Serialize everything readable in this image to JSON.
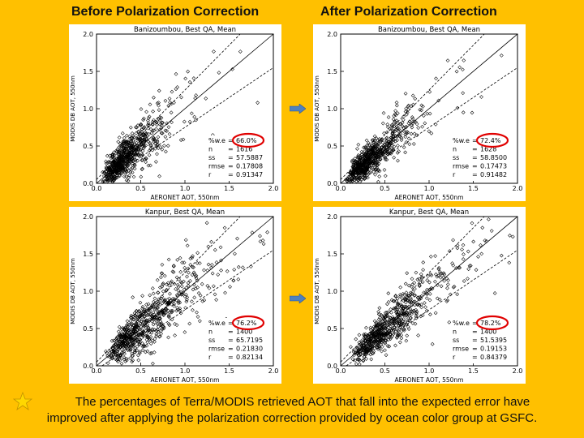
{
  "headers": {
    "before": "Before Polarization Correction",
    "after": "After Polarization Correction"
  },
  "caption": {
    "line1": "The percentages of Terra/MODIS retrieved AOT that fall into the expected error have",
    "line2": "improved after applying the polarization correction provided by ocean color group at GSFC."
  },
  "colors": {
    "background": "#FFC000",
    "arrow": "#4F81BD",
    "star": "#FFD700",
    "highlight": "#E00000"
  },
  "icons": {
    "arrow": "right-arrow-icon",
    "star": "star-icon"
  },
  "chart_data": [
    {
      "type": "scatter",
      "title": "Banizoumbou, Best QA, Mean",
      "xlabel": "AERONET AOT, 550nm",
      "ylabel": "MODIS DB AOT, 550nm",
      "xlim": [
        0,
        2
      ],
      "ylim": [
        0,
        2
      ],
      "xticks": [
        "0.0",
        "0.5",
        "1.0",
        "1.5",
        "2.0"
      ],
      "yticks": [
        "0.0",
        "0.5",
        "1.0",
        "1.5",
        "2.0"
      ],
      "stats": {
        "pct_we": "66.0%",
        "n": "1616",
        "ss": "57.5887",
        "rmse": "0.17808",
        "r": "0.91347"
      },
      "cluster": {
        "x_center": 0.35,
        "y_center": 0.4,
        "spread": 0.35
      }
    },
    {
      "type": "scatter",
      "title": "Banizoumbou, Best QA, Mean",
      "xlabel": "AERONET AOT, 550nm",
      "ylabel": "MODIS DB AOT, 550nm",
      "xlim": [
        0,
        2
      ],
      "ylim": [
        0,
        2
      ],
      "xticks": [
        "0.0",
        "0.5",
        "1.0",
        "1.5",
        "2.0"
      ],
      "yticks": [
        "0.0",
        "0.5",
        "1.0",
        "1.5",
        "2.0"
      ],
      "stats": {
        "pct_we": "72.4%",
        "n": "1628",
        "ss": "58.8500",
        "rmse": "0.17473",
        "r": "0.91482"
      },
      "cluster": {
        "x_center": 0.35,
        "y_center": 0.33,
        "spread": 0.3
      }
    },
    {
      "type": "scatter",
      "title": "Kanpur, Best QA, Mean",
      "xlabel": "AERONET AOT, 550nm",
      "ylabel": "MODIS DB AOT, 550nm",
      "xlim": [
        0,
        2
      ],
      "ylim": [
        0,
        2
      ],
      "xticks": [
        "0.0",
        "0.5",
        "1.0",
        "1.5",
        "2.0"
      ],
      "yticks": [
        "0.0",
        "0.5",
        "1.0",
        "1.5",
        "2.0"
      ],
      "stats": {
        "pct_we": "76.2%",
        "n": "1400",
        "ss": "65.7195",
        "rmse": "0.21830",
        "r": "0.82134"
      },
      "cluster": {
        "x_center": 0.55,
        "y_center": 0.55,
        "spread": 0.35
      }
    },
    {
      "type": "scatter",
      "title": "Kanpur, Best QA, Mean",
      "xlabel": "AERONET AOT, 550nm",
      "ylabel": "MODIS DB AOT, 550nm",
      "xlim": [
        0,
        2
      ],
      "ylim": [
        0,
        2
      ],
      "xticks": [
        "0.0",
        "0.5",
        "1.0",
        "1.5",
        "2.0"
      ],
      "yticks": [
        "0.0",
        "0.5",
        "1.0",
        "1.5",
        "2.0"
      ],
      "stats": {
        "pct_we": "78.2%",
        "n": "1400",
        "ss": "51.5395",
        "rmse": "0.19153",
        "r": "0.84379"
      },
      "cluster": {
        "x_center": 0.55,
        "y_center": 0.5,
        "spread": 0.3
      }
    }
  ]
}
